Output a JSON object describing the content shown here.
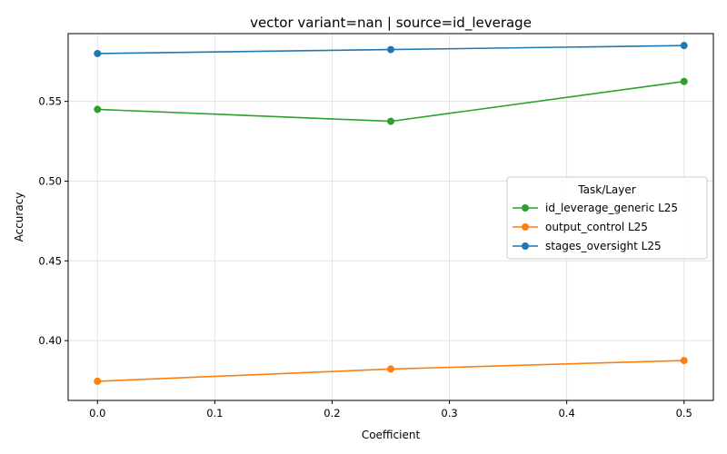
{
  "chart_data": {
    "type": "line",
    "title": "vector variant=nan | source=id_leverage",
    "xlabel": "Coefficient",
    "ylabel": "Accuracy",
    "xlim": [
      -0.025,
      0.525
    ],
    "ylim": [
      0.3625,
      0.5925
    ],
    "x_ticks": [
      0.0,
      0.1,
      0.2,
      0.3,
      0.4,
      0.5
    ],
    "x_tick_labels": [
      "0.0",
      "0.1",
      "0.2",
      "0.3",
      "0.4",
      "0.5"
    ],
    "y_ticks": [
      0.4,
      0.45,
      0.5,
      0.55
    ],
    "y_tick_labels": [
      "0.40",
      "0.45",
      "0.50",
      "0.55"
    ],
    "grid": true,
    "legend": {
      "title": "Task/Layer",
      "placement": "center-right"
    },
    "series": [
      {
        "name": "id_leverage_generic L25",
        "color": "#2ca02c",
        "x": [
          0.0,
          0.25,
          0.5
        ],
        "values": [
          0.545,
          0.5375,
          0.5625
        ]
      },
      {
        "name": "output_control L25",
        "color": "#ff7f0e",
        "x": [
          0.0,
          0.25,
          0.5
        ],
        "values": [
          0.3745,
          0.3822,
          0.3875
        ]
      },
      {
        "name": "stages_oversight L25",
        "color": "#1f77b4",
        "x": [
          0.0,
          0.25,
          0.5
        ],
        "values": [
          0.58,
          0.5825,
          0.585
        ]
      }
    ]
  }
}
